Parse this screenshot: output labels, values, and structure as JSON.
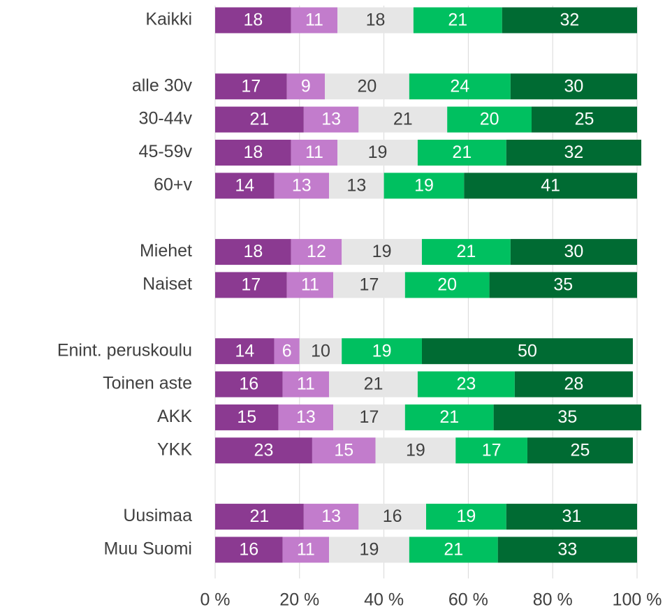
{
  "chart_data": {
    "type": "stacked-bar-horizontal",
    "categories": [
      "Kaikki",
      null,
      "alle 30v",
      "30-44v",
      "45-59v",
      "60+v",
      null,
      "Miehet",
      "Naiset",
      null,
      "Enint. peruskoulu",
      "Toinen aste",
      "AKK",
      "YKK",
      null,
      "Uusimaa",
      "Muu Suomi"
    ],
    "series": [
      {
        "color": "#8b3a91",
        "text_color": "#ffffff",
        "values": [
          18,
          null,
          17,
          21,
          18,
          14,
          null,
          18,
          17,
          null,
          14,
          16,
          15,
          23,
          null,
          21,
          16
        ]
      },
      {
        "color": "#c27ccc",
        "text_color": "#ffffff",
        "values": [
          11,
          null,
          9,
          13,
          11,
          13,
          null,
          12,
          11,
          null,
          6,
          11,
          13,
          15,
          null,
          13,
          11
        ]
      },
      {
        "color": "#e6e6e6",
        "text_color": "#404040",
        "values": [
          18,
          null,
          20,
          21,
          19,
          13,
          null,
          19,
          17,
          null,
          10,
          21,
          17,
          19,
          null,
          16,
          19
        ]
      },
      {
        "color": "#00c060",
        "text_color": "#ffffff",
        "values": [
          21,
          null,
          24,
          20,
          21,
          19,
          null,
          21,
          20,
          null,
          19,
          23,
          21,
          17,
          null,
          19,
          21
        ]
      },
      {
        "color": "#006b33",
        "text_color": "#ffffff",
        "values": [
          32,
          null,
          30,
          25,
          32,
          41,
          null,
          30,
          35,
          null,
          50,
          28,
          35,
          25,
          null,
          31,
          33
        ]
      }
    ],
    "xlim": [
      0,
      100
    ],
    "xticks": [
      {
        "value": 0,
        "label": "0 %"
      },
      {
        "value": 20,
        "label": "20 %"
      },
      {
        "value": 40,
        "label": "40 %"
      },
      {
        "value": 60,
        "label": "60 %"
      },
      {
        "value": 80,
        "label": "80 %"
      },
      {
        "value": 100,
        "label": "100 %"
      }
    ],
    "grid": true
  }
}
